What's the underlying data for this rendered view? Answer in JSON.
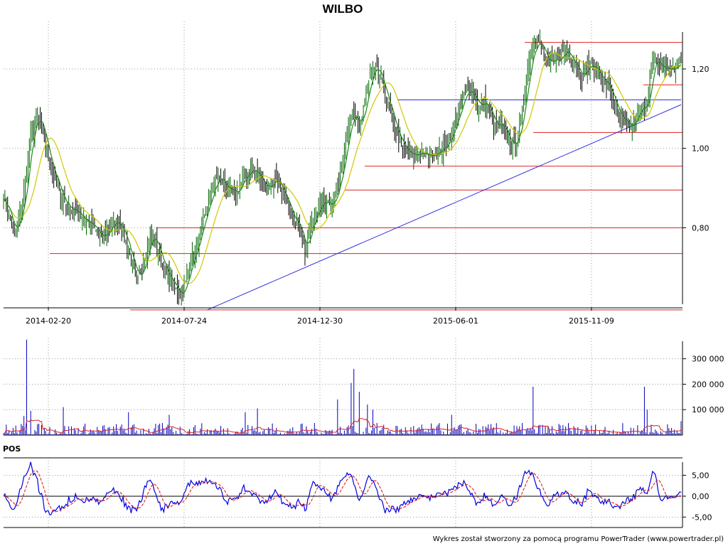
{
  "title": "WILBO",
  "footer": "Wykres został stworzony za pomocą programu PowerTrader (www.powertrader.pl)",
  "chart_data": [
    {
      "type": "candlestick",
      "title": "WILBO",
      "x_tick_labels": [
        "2014-02-20",
        "2014-07-24",
        "2014-12-30",
        "2015-06-01",
        "2015-11-09"
      ],
      "y_tick_labels": [
        "1,20",
        "1,00",
        "0,80"
      ],
      "y_ticks": [
        1.2,
        1.0,
        0.8
      ],
      "ylim": [
        0.6,
        1.32
      ],
      "grid": true,
      "price_path": [
        {
          "i": 0,
          "p": 0.88
        },
        {
          "i": 4,
          "p": 0.83
        },
        {
          "i": 8,
          "p": 0.78
        },
        {
          "i": 14,
          "p": 0.86
        },
        {
          "i": 20,
          "p": 1.03
        },
        {
          "i": 25,
          "p": 1.08
        },
        {
          "i": 30,
          "p": 1.02
        },
        {
          "i": 36,
          "p": 0.94
        },
        {
          "i": 42,
          "p": 0.88
        },
        {
          "i": 48,
          "p": 0.85
        },
        {
          "i": 54,
          "p": 0.84
        },
        {
          "i": 60,
          "p": 0.82
        },
        {
          "i": 66,
          "p": 0.8
        },
        {
          "i": 72,
          "p": 0.77
        },
        {
          "i": 78,
          "p": 0.8
        },
        {
          "i": 84,
          "p": 0.82
        },
        {
          "i": 88,
          "p": 0.79
        },
        {
          "i": 94,
          "p": 0.72
        },
        {
          "i": 98,
          "p": 0.66
        },
        {
          "i": 102,
          "p": 0.7
        },
        {
          "i": 106,
          "p": 0.76
        },
        {
          "i": 110,
          "p": 0.78
        },
        {
          "i": 114,
          "p": 0.74
        },
        {
          "i": 120,
          "p": 0.68
        },
        {
          "i": 126,
          "p": 0.65
        },
        {
          "i": 130,
          "p": 0.63
        },
        {
          "i": 134,
          "p": 0.66
        },
        {
          "i": 138,
          "p": 0.72
        },
        {
          "i": 142,
          "p": 0.75
        },
        {
          "i": 146,
          "p": 0.8
        },
        {
          "i": 152,
          "p": 0.88
        },
        {
          "i": 158,
          "p": 0.93
        },
        {
          "i": 164,
          "p": 0.9
        },
        {
          "i": 170,
          "p": 0.88
        },
        {
          "i": 176,
          "p": 0.92
        },
        {
          "i": 182,
          "p": 0.95
        },
        {
          "i": 188,
          "p": 0.93
        },
        {
          "i": 194,
          "p": 0.9
        },
        {
          "i": 200,
          "p": 0.92
        },
        {
          "i": 206,
          "p": 0.88
        },
        {
          "i": 212,
          "p": 0.84
        },
        {
          "i": 218,
          "p": 0.8
        },
        {
          "i": 222,
          "p": 0.74
        },
        {
          "i": 226,
          "p": 0.8
        },
        {
          "i": 230,
          "p": 0.84
        },
        {
          "i": 234,
          "p": 0.86
        },
        {
          "i": 238,
          "p": 0.87
        },
        {
          "i": 242,
          "p": 0.86
        },
        {
          "i": 246,
          "p": 0.9
        },
        {
          "i": 250,
          "p": 0.98
        },
        {
          "i": 254,
          "p": 1.06
        },
        {
          "i": 258,
          "p": 1.08
        },
        {
          "i": 262,
          "p": 1.05
        },
        {
          "i": 266,
          "p": 1.12
        },
        {
          "i": 270,
          "p": 1.18
        },
        {
          "i": 274,
          "p": 1.2
        },
        {
          "i": 278,
          "p": 1.17
        },
        {
          "i": 282,
          "p": 1.12
        },
        {
          "i": 288,
          "p": 1.05
        },
        {
          "i": 294,
          "p": 1.0
        },
        {
          "i": 300,
          "p": 0.98
        },
        {
          "i": 306,
          "p": 0.99
        },
        {
          "i": 312,
          "p": 0.98
        },
        {
          "i": 318,
          "p": 0.99
        },
        {
          "i": 324,
          "p": 1.0
        },
        {
          "i": 330,
          "p": 1.04
        },
        {
          "i": 334,
          "p": 1.08
        },
        {
          "i": 338,
          "p": 1.12
        },
        {
          "i": 342,
          "p": 1.15
        },
        {
          "i": 346,
          "p": 1.14
        },
        {
          "i": 350,
          "p": 1.1
        },
        {
          "i": 354,
          "p": 1.12
        },
        {
          "i": 358,
          "p": 1.09
        },
        {
          "i": 362,
          "p": 1.05
        },
        {
          "i": 366,
          "p": 1.06
        },
        {
          "i": 370,
          "p": 1.03
        },
        {
          "i": 374,
          "p": 1.01
        },
        {
          "i": 378,
          "p": 1.02
        },
        {
          "i": 382,
          "p": 1.09
        },
        {
          "i": 386,
          "p": 1.2
        },
        {
          "i": 390,
          "p": 1.26
        },
        {
          "i": 394,
          "p": 1.28
        },
        {
          "i": 398,
          "p": 1.23
        },
        {
          "i": 402,
          "p": 1.21
        },
        {
          "i": 408,
          "p": 1.22
        },
        {
          "i": 414,
          "p": 1.25
        },
        {
          "i": 420,
          "p": 1.22
        },
        {
          "i": 426,
          "p": 1.18
        },
        {
          "i": 430,
          "p": 1.21
        },
        {
          "i": 436,
          "p": 1.2
        },
        {
          "i": 442,
          "p": 1.17
        },
        {
          "i": 446,
          "p": 1.15
        },
        {
          "i": 450,
          "p": 1.11
        },
        {
          "i": 454,
          "p": 1.07
        },
        {
          "i": 458,
          "p": 1.06
        },
        {
          "i": 462,
          "p": 1.05
        },
        {
          "i": 466,
          "p": 1.08
        },
        {
          "i": 470,
          "p": 1.1
        },
        {
          "i": 474,
          "p": 1.12
        },
        {
          "i": 478,
          "p": 1.22
        },
        {
          "i": 482,
          "p": 1.21
        },
        {
          "i": 488,
          "p": 1.2
        },
        {
          "i": 494,
          "p": 1.2
        },
        {
          "i": 499,
          "p": 1.22
        }
      ],
      "support_resistance_levels": [
        0.593,
        0.735,
        0.8,
        0.895,
        0.955,
        1.04,
        1.16,
        1.267
      ],
      "trendlines": [
        {
          "from": {
            "i": 150,
            "p": 0.593
          },
          "to": {
            "i": 499,
            "p": 1.11
          }
        },
        {
          "from": {
            "i": 290,
            "p": 1.122
          },
          "to": {
            "i": 499,
            "p": 1.122
          }
        }
      ],
      "colors": {
        "up": "#006400",
        "down": "#000000",
        "ma_short": "#1a8a1a",
        "ma_long": "#d0c800",
        "horizontal": "#e02020",
        "trend": "#3030e0"
      }
    },
    {
      "type": "bar",
      "name": "volume",
      "y_tick_labels": [
        "300 000",
        "200 000",
        "100 000"
      ],
      "y_ticks": [
        300000,
        200000,
        100000
      ],
      "ylim": [
        0,
        380000
      ],
      "grid": true,
      "spikes": [
        {
          "i": 17,
          "v": 375000
        },
        {
          "i": 15,
          "v": 75000
        },
        {
          "i": 20,
          "v": 95000
        },
        {
          "i": 44,
          "v": 110000
        },
        {
          "i": 92,
          "v": 90000
        },
        {
          "i": 122,
          "v": 80000
        },
        {
          "i": 178,
          "v": 90000
        },
        {
          "i": 187,
          "v": 105000
        },
        {
          "i": 246,
          "v": 140000
        },
        {
          "i": 258,
          "v": 260000
        },
        {
          "i": 256,
          "v": 205000
        },
        {
          "i": 262,
          "v": 170000
        },
        {
          "i": 268,
          "v": 120000
        },
        {
          "i": 272,
          "v": 100000
        },
        {
          "i": 330,
          "v": 80000
        },
        {
          "i": 390,
          "v": 190000
        },
        {
          "i": 472,
          "v": 190000
        },
        {
          "i": 474,
          "v": 100000
        },
        {
          "i": 499,
          "v": 55000
        }
      ],
      "colors": {
        "bars": "#0000c0",
        "ma": "#e02020"
      }
    },
    {
      "type": "line",
      "title": "POS",
      "y_tick_labels": [
        "5,00",
        "0,00",
        "-5,00"
      ],
      "y_ticks": [
        5,
        0,
        -5
      ],
      "ylim": [
        -7.5,
        8.5
      ],
      "grid": true,
      "colors": {
        "pos": "#0000e0",
        "signal": "#e02020",
        "zero": "#000000"
      }
    }
  ]
}
